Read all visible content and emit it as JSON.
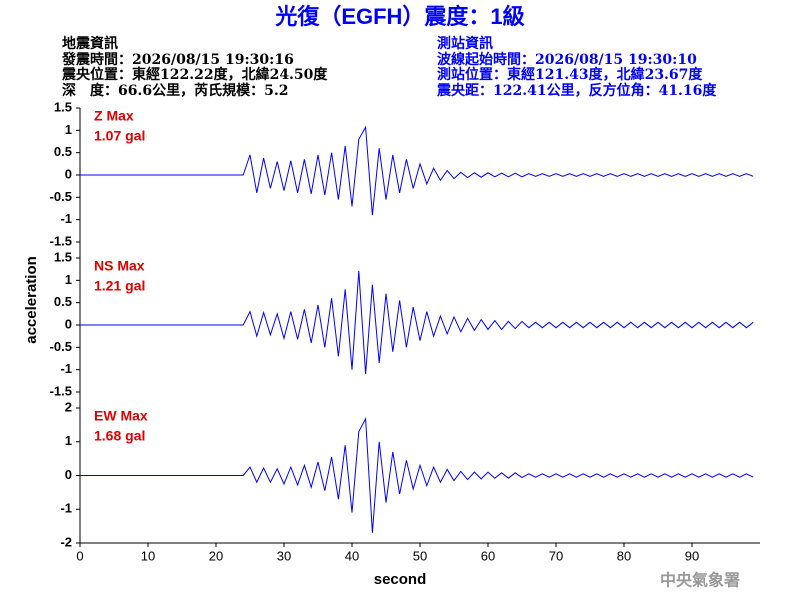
{
  "header": {
    "title": "光復（EGFH）震度：1級",
    "left": [
      "地震資訊",
      "發震時間：2026/08/15 19:30:16",
      "震央位置：東經122.22度，北緯24.50度",
      "深　度：66.6公里，芮氏規模：5.2"
    ],
    "right": [
      "測站資訊",
      "波線起始時間：2026/08/15 19:30:10",
      "測站位置：東經121.43度，北緯23.67度",
      "震央距：122.41公里，反方位角：41.16度"
    ]
  },
  "footer": "中央氣象署",
  "chart_data": [
    {
      "type": "line",
      "annotations": [
        "Z Max",
        "1.07 gal"
      ],
      "color": "#0000ff",
      "x": [
        0,
        24,
        25,
        26,
        27,
        28,
        29,
        30,
        31,
        32,
        33,
        34,
        35,
        36,
        37,
        38,
        39,
        40,
        41,
        42,
        43,
        44,
        45,
        46,
        47,
        48,
        49,
        50,
        51,
        52,
        53,
        54,
        55,
        56,
        57,
        58,
        59,
        60,
        61,
        62,
        63,
        64,
        65,
        66,
        67,
        68,
        69,
        70,
        71,
        72,
        73,
        74,
        75,
        76,
        77,
        78,
        79,
        80,
        81,
        82,
        83,
        84,
        85,
        86,
        87,
        88,
        89,
        90,
        91,
        92,
        93,
        94,
        95,
        96,
        97,
        98,
        99
      ],
      "values": [
        0,
        0,
        0.45,
        -0.4,
        0.38,
        -0.3,
        0.3,
        -0.35,
        0.32,
        -0.4,
        0.35,
        -0.42,
        0.45,
        -0.45,
        0.5,
        -0.55,
        0.65,
        -0.7,
        0.8,
        1.07,
        -0.9,
        0.6,
        -0.55,
        0.45,
        -0.4,
        0.35,
        -0.3,
        0.25,
        -0.2,
        0.15,
        -0.12,
        0.1,
        -0.08,
        0.06,
        -0.06,
        0.05,
        -0.05,
        0.05,
        -0.04,
        0.04,
        -0.04,
        0.04,
        -0.04,
        0.03,
        -0.03,
        0.03,
        -0.03,
        0.03,
        -0.03,
        0.03,
        -0.03,
        0.03,
        -0.03,
        0.03,
        -0.03,
        0.03,
        -0.03,
        0.03,
        -0.03,
        0.03,
        -0.03,
        0.03,
        -0.03,
        0.03,
        -0.03,
        0.03,
        -0.03,
        0.03,
        -0.03,
        0.03,
        -0.03,
        0.03,
        -0.03,
        0.03,
        -0.03,
        0.03,
        -0.03
      ],
      "xlim": [
        0,
        100
      ],
      "ylim": [
        -1.5,
        1.5
      ],
      "yticks": [
        -1.5,
        -1,
        -0.5,
        0,
        0.5,
        1,
        1.5
      ]
    },
    {
      "type": "line",
      "annotations": [
        "NS Max",
        "1.21 gal"
      ],
      "color": "#0000ff",
      "y_label": "acceleration",
      "x": [
        0,
        24,
        25,
        26,
        27,
        28,
        29,
        30,
        31,
        32,
        33,
        34,
        35,
        36,
        37,
        38,
        39,
        40,
        41,
        42,
        43,
        44,
        45,
        46,
        47,
        48,
        49,
        50,
        51,
        52,
        53,
        54,
        55,
        56,
        57,
        58,
        59,
        60,
        61,
        62,
        63,
        64,
        65,
        66,
        67,
        68,
        69,
        70,
        71,
        72,
        73,
        74,
        75,
        76,
        77,
        78,
        79,
        80,
        81,
        82,
        83,
        84,
        85,
        86,
        87,
        88,
        89,
        90,
        91,
        92,
        93,
        94,
        95,
        96,
        97,
        98,
        99
      ],
      "values": [
        0,
        0,
        0.3,
        -0.25,
        0.28,
        -0.22,
        0.25,
        -0.3,
        0.3,
        -0.32,
        0.35,
        -0.4,
        0.45,
        -0.5,
        0.6,
        -0.7,
        0.8,
        -1.0,
        1.21,
        -1.1,
        0.9,
        -0.85,
        0.7,
        -0.6,
        0.55,
        -0.5,
        0.4,
        -0.35,
        0.3,
        -0.25,
        0.2,
        -0.2,
        0.18,
        -0.15,
        0.15,
        -0.12,
        0.12,
        -0.1,
        0.1,
        -0.1,
        0.08,
        -0.08,
        0.08,
        -0.06,
        0.06,
        -0.06,
        0.06,
        -0.06,
        0.06,
        -0.06,
        0.06,
        -0.06,
        0.06,
        -0.06,
        0.06,
        -0.06,
        0.06,
        -0.06,
        0.06,
        -0.06,
        0.06,
        -0.06,
        0.06,
        -0.06,
        0.06,
        -0.06,
        0.06,
        -0.06,
        0.06,
        -0.06,
        0.06,
        -0.06,
        0.06,
        -0.06,
        0.06,
        -0.06,
        0.06
      ],
      "xlim": [
        0,
        100
      ],
      "ylim": [
        -1.5,
        1.5
      ],
      "yticks": [
        -1.5,
        -1,
        -0.5,
        0,
        0.5,
        1,
        1.5
      ]
    },
    {
      "type": "line",
      "annotations": [
        "EW Max",
        "1.68 gal"
      ],
      "color": "#0000ff",
      "x_label": "second",
      "x": [
        0,
        24,
        25,
        26,
        27,
        28,
        29,
        30,
        31,
        32,
        33,
        34,
        35,
        36,
        37,
        38,
        39,
        40,
        41,
        42,
        43,
        44,
        45,
        46,
        47,
        48,
        49,
        50,
        51,
        52,
        53,
        54,
        55,
        56,
        57,
        58,
        59,
        60,
        61,
        62,
        63,
        64,
        65,
        66,
        67,
        68,
        69,
        70,
        71,
        72,
        73,
        74,
        75,
        76,
        77,
        78,
        79,
        80,
        81,
        82,
        83,
        84,
        85,
        86,
        87,
        88,
        89,
        90,
        91,
        92,
        93,
        94,
        95,
        96,
        97,
        98,
        99
      ],
      "values": [
        0,
        0,
        0.25,
        -0.2,
        0.22,
        -0.2,
        0.2,
        -0.25,
        0.25,
        -0.28,
        0.3,
        -0.35,
        0.4,
        -0.45,
        0.55,
        -0.7,
        0.9,
        -1.1,
        1.3,
        1.68,
        -1.7,
        1.0,
        -0.8,
        0.7,
        -0.55,
        0.45,
        -0.4,
        0.3,
        -0.3,
        0.25,
        -0.2,
        0.18,
        -0.15,
        0.12,
        -0.12,
        0.1,
        -0.1,
        0.1,
        -0.08,
        0.08,
        -0.08,
        0.08,
        -0.06,
        0.05,
        -0.05,
        0.05,
        -0.05,
        0.05,
        -0.05,
        0.05,
        -0.05,
        0.05,
        -0.05,
        0.05,
        -0.05,
        0.05,
        -0.05,
        0.05,
        -0.05,
        0.05,
        -0.05,
        0.05,
        -0.05,
        0.05,
        -0.05,
        0.05,
        -0.05,
        0.05,
        -0.05,
        0.05,
        -0.05,
        0.05,
        -0.05,
        0.05,
        -0.05,
        0.05,
        -0.05
      ],
      "xlim": [
        0,
        100
      ],
      "ylim": [
        -2,
        2
      ],
      "yticks": [
        -2,
        -1,
        0,
        1,
        2
      ],
      "xticks": [
        0,
        10,
        20,
        30,
        40,
        50,
        60,
        70,
        80,
        90
      ]
    }
  ]
}
